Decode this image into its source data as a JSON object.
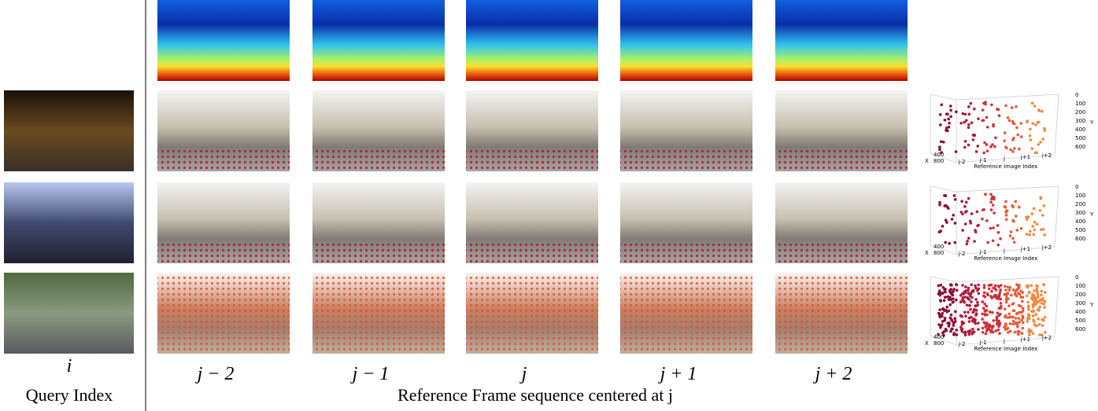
{
  "query": {
    "index_label": "i",
    "caption": "Query Index"
  },
  "reference": {
    "frame_labels": [
      "j − 2",
      "j − 1",
      "j",
      "j + 1",
      "j + 2"
    ],
    "caption": "Reference Frame sequence centered at j"
  },
  "plot_axes": {
    "y_ticks": [
      "0",
      "100",
      "200",
      "300",
      "400",
      "500",
      "600"
    ],
    "y_label": "Y",
    "x_ticks": [
      "400",
      "800"
    ],
    "x_label": "X",
    "index_ticks": [
      "j-2",
      "j-1",
      "j",
      "j+1",
      "j+2"
    ],
    "index_label": "Reference Image Index"
  }
}
